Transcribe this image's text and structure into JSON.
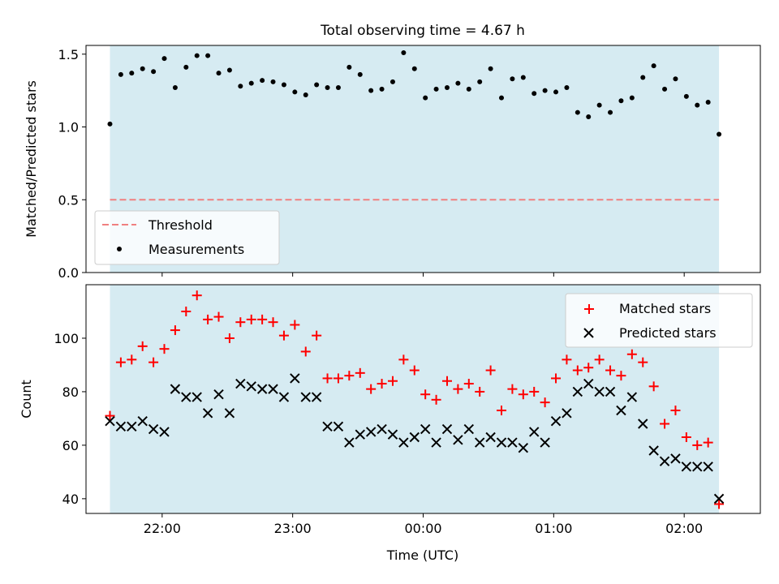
{
  "chart_data": [
    {
      "type": "scatter",
      "title": "Total observing time = 4.67 h",
      "xlabel": "",
      "ylabel": "Matched/Predicted stars",
      "ylim": [
        0,
        1.56
      ],
      "yticks": [
        "0.0",
        "0.5",
        "1.0",
        "1.5"
      ],
      "xlim": [
        "21:25",
        "02:35"
      ],
      "xticks": [
        "22:00",
        "23:00",
        "00:00",
        "01:00",
        "02:00"
      ],
      "xticklabels_shown": false,
      "observing_window": [
        "21:36",
        "02:16"
      ],
      "shade_color": "#add8e6",
      "threshold": {
        "name": "Threshold",
        "value": 0.5,
        "color": "#f08080",
        "style": "dashed"
      },
      "legend": {
        "placement": "lower left",
        "entries": [
          "Threshold",
          "Measurements"
        ]
      },
      "series": [
        {
          "name": "Measurements",
          "color": "#000000",
          "marker": "dot",
          "x": [
            "21:36",
            "21:41",
            "21:46",
            "21:51",
            "21:56",
            "22:01",
            "22:06",
            "22:11",
            "22:16",
            "22:21",
            "22:26",
            "22:31",
            "22:36",
            "22:41",
            "22:46",
            "22:51",
            "22:56",
            "23:01",
            "23:06",
            "23:11",
            "23:16",
            "23:21",
            "23:26",
            "23:31",
            "23:36",
            "23:41",
            "23:46",
            "23:51",
            "23:56",
            "00:01",
            "00:06",
            "00:11",
            "00:16",
            "00:21",
            "00:26",
            "00:31",
            "00:36",
            "00:41",
            "00:46",
            "00:51",
            "00:56",
            "01:01",
            "01:06",
            "01:11",
            "01:16",
            "01:21",
            "01:26",
            "01:31",
            "01:36",
            "01:41",
            "01:46",
            "01:51",
            "01:56",
            "02:01",
            "02:06",
            "02:11",
            "02:16"
          ],
          "y": [
            1.02,
            1.36,
            1.37,
            1.4,
            1.38,
            1.47,
            1.27,
            1.41,
            1.49,
            1.49,
            1.37,
            1.39,
            1.28,
            1.3,
            1.32,
            1.31,
            1.29,
            1.24,
            1.22,
            1.29,
            1.27,
            1.27,
            1.41,
            1.36,
            1.25,
            1.26,
            1.31,
            1.51,
            1.4,
            1.2,
            1.26,
            1.27,
            1.3,
            1.26,
            1.31,
            1.4,
            1.2,
            1.33,
            1.34,
            1.23,
            1.25,
            1.24,
            1.27,
            1.1,
            1.07,
            1.15,
            1.1,
            1.18,
            1.2,
            1.34,
            1.42,
            1.26,
            1.33,
            1.21,
            1.15,
            1.17,
            0.95
          ]
        }
      ]
    },
    {
      "type": "scatter",
      "title": "",
      "xlabel": "Time (UTC)",
      "ylabel": "Count",
      "ylim": [
        34.5,
        120
      ],
      "yticks": [
        "40",
        "60",
        "80",
        "100"
      ],
      "xlim": [
        "21:25",
        "02:35"
      ],
      "xticks": [
        "22:00",
        "23:00",
        "00:00",
        "01:00",
        "02:00"
      ],
      "observing_window": [
        "21:36",
        "02:16"
      ],
      "shade_color": "#add8e6",
      "legend": {
        "placement": "upper right",
        "entries": [
          "Matched stars",
          "Predicted stars"
        ]
      },
      "series": [
        {
          "name": "Matched stars",
          "color": "#ff0000",
          "marker": "plus",
          "x": [
            "21:36",
            "21:41",
            "21:46",
            "21:51",
            "21:56",
            "22:01",
            "22:06",
            "22:11",
            "22:16",
            "22:21",
            "22:26",
            "22:31",
            "22:36",
            "22:41",
            "22:46",
            "22:51",
            "22:56",
            "23:01",
            "23:06",
            "23:11",
            "23:16",
            "23:21",
            "23:26",
            "23:31",
            "23:36",
            "23:41",
            "23:46",
            "23:51",
            "23:56",
            "00:01",
            "00:06",
            "00:11",
            "00:16",
            "00:21",
            "00:26",
            "00:31",
            "00:36",
            "00:41",
            "00:46",
            "00:51",
            "00:56",
            "01:01",
            "01:06",
            "01:11",
            "01:16",
            "01:21",
            "01:26",
            "01:31",
            "01:36",
            "01:41",
            "01:46",
            "01:51",
            "01:56",
            "02:01",
            "02:06",
            "02:11",
            "02:16"
          ],
          "y": [
            71,
            91,
            92,
            97,
            91,
            96,
            103,
            110,
            116,
            107,
            108,
            100,
            106,
            107,
            107,
            106,
            101,
            105,
            95,
            101,
            85,
            85,
            86,
            87,
            81,
            83,
            84,
            92,
            88,
            79,
            77,
            84,
            81,
            83,
            80,
            88,
            73,
            81,
            79,
            80,
            76,
            85,
            92,
            88,
            89,
            92,
            88,
            86,
            94,
            91,
            82,
            68,
            73,
            63,
            60,
            61,
            38
          ]
        },
        {
          "name": "Predicted stars",
          "color": "#000000",
          "marker": "x",
          "x": [
            "21:36",
            "21:41",
            "21:46",
            "21:51",
            "21:56",
            "22:01",
            "22:06",
            "22:11",
            "22:16",
            "22:21",
            "22:26",
            "22:31",
            "22:36",
            "22:41",
            "22:46",
            "22:51",
            "22:56",
            "23:01",
            "23:06",
            "23:11",
            "23:16",
            "23:21",
            "23:26",
            "23:31",
            "23:36",
            "23:41",
            "23:46",
            "23:51",
            "23:56",
            "00:01",
            "00:06",
            "00:11",
            "00:16",
            "00:21",
            "00:26",
            "00:31",
            "00:36",
            "00:41",
            "00:46",
            "00:51",
            "00:56",
            "01:01",
            "01:06",
            "01:11",
            "01:16",
            "01:21",
            "01:26",
            "01:31",
            "01:36",
            "01:41",
            "01:46",
            "01:51",
            "01:56",
            "02:01",
            "02:06",
            "02:11",
            "02:16"
          ],
          "y": [
            69,
            67,
            67,
            69,
            66,
            65,
            81,
            78,
            78,
            72,
            79,
            72,
            83,
            82,
            81,
            81,
            78,
            85,
            78,
            78,
            67,
            67,
            61,
            64,
            65,
            66,
            64,
            61,
            63,
            66,
            61,
            66,
            62,
            66,
            61,
            63,
            61,
            61,
            59,
            65,
            61,
            69,
            72,
            80,
            83,
            80,
            80,
            73,
            78,
            68,
            58,
            54,
            55,
            52,
            52,
            52,
            40
          ]
        }
      ]
    }
  ]
}
